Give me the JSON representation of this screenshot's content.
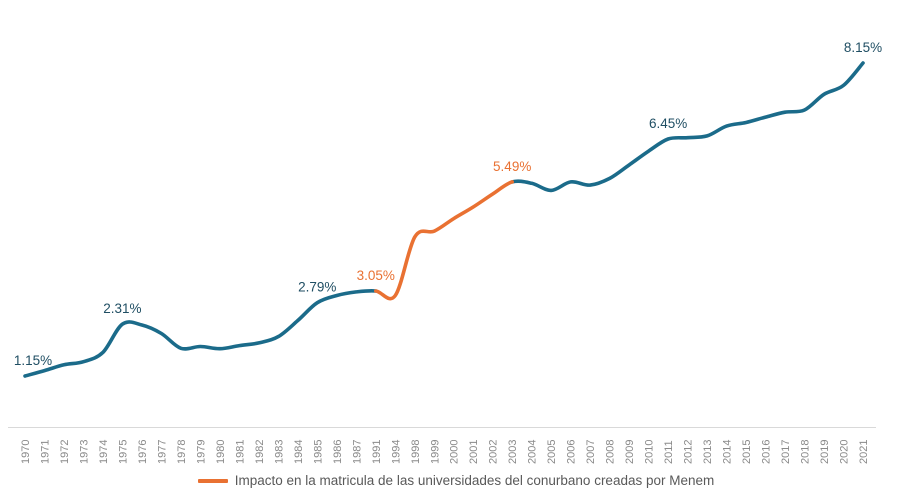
{
  "chart_data": {
    "type": "line",
    "categories": [
      "1970",
      "1971",
      "1972",
      "1973",
      "1974",
      "1975",
      "1976",
      "1977",
      "1978",
      "1979",
      "1980",
      "1981",
      "1982",
      "1983",
      "1984",
      "1985",
      "1986",
      "1987",
      "1991",
      "1994",
      "1998",
      "1999",
      "2000",
      "2001",
      "2002",
      "2003",
      "2004",
      "2005",
      "2006",
      "2007",
      "2008",
      "2009",
      "2010",
      "2011",
      "2012",
      "2013",
      "2014",
      "2015",
      "2016",
      "2017",
      "2018",
      "2019",
      "2020",
      "2021"
    ],
    "values": [
      1.15,
      1.27,
      1.4,
      1.47,
      1.68,
      2.31,
      2.29,
      2.1,
      1.77,
      1.81,
      1.76,
      1.83,
      1.89,
      2.03,
      2.39,
      2.79,
      2.95,
      3.03,
      3.05,
      2.95,
      4.26,
      4.39,
      4.67,
      4.93,
      5.22,
      5.49,
      5.46,
      5.3,
      5.49,
      5.42,
      5.57,
      5.87,
      6.18,
      6.45,
      6.48,
      6.52,
      6.74,
      6.82,
      6.94,
      7.05,
      7.1,
      7.45,
      7.65,
      8.15
    ],
    "unit": "%",
    "title": "",
    "xlabel": "",
    "ylabel": "",
    "ylim": [
      0,
      8.9
    ],
    "grid": false,
    "x_tick_rotation": 90,
    "legend_position": "bottom-center",
    "highlight_segment": {
      "from": "1991",
      "to": "2003",
      "legend_label": "Impacto en la matricula de las universidades del conurbano creadas por Menem"
    },
    "point_labels": [
      {
        "category": "1970",
        "text": "1.15%",
        "color": "primary"
      },
      {
        "category": "1975",
        "text": "2.31%",
        "color": "primary"
      },
      {
        "category": "1985",
        "text": "2.79%",
        "color": "primary"
      },
      {
        "category": "1991",
        "text": "3.05%",
        "color": "accent"
      },
      {
        "category": "2003",
        "text": "5.49%",
        "color": "accent"
      },
      {
        "category": "2011",
        "text": "6.45%",
        "color": "primary"
      },
      {
        "category": "2021",
        "text": "8.15%",
        "color": "primary"
      }
    ],
    "colors": {
      "primary": "#1B6B8A",
      "accent": "#E97132",
      "label_primary": "#1F4E63",
      "label_accent": "#E97132",
      "axis_text": "#8A8A8A",
      "axis_line": "#D9D9D9",
      "legend_text": "#595959",
      "background": "#FFFFFF"
    }
  }
}
